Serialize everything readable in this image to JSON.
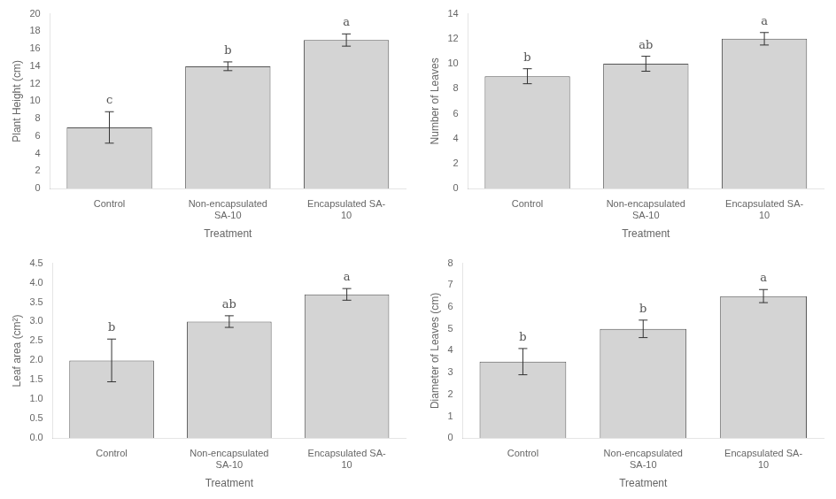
{
  "chart_data": [
    {
      "type": "bar",
      "categories": [
        "Control",
        "Non-encapsulated\nSA-10",
        "Encapsulated SA-\n10"
      ],
      "values": [
        7.0,
        14.0,
        17.0
      ],
      "errors": [
        1.8,
        0.5,
        0.7
      ],
      "annotations": [
        "c",
        "b",
        "a"
      ],
      "xlabel": "Treatment",
      "ylabel": "Plant Height (cm)",
      "ylim": [
        0,
        20
      ],
      "yticks": [
        0,
        2,
        4,
        6,
        8,
        10,
        12,
        14,
        16,
        18,
        20
      ],
      "color": "#d4d4d4",
      "grid": false
    },
    {
      "type": "bar",
      "categories": [
        "Control",
        "Non-encapsulated\nSA-10",
        "Encapsulated SA-\n10"
      ],
      "values": [
        9.0,
        10.0,
        12.0
      ],
      "errors": [
        0.6,
        0.6,
        0.5
      ],
      "annotations": [
        "b",
        "ab",
        "a"
      ],
      "xlabel": "Treatment",
      "ylabel": "Number of Leaves",
      "ylim": [
        0,
        14
      ],
      "yticks": [
        0,
        2,
        4,
        6,
        8,
        10,
        12,
        14
      ],
      "color": "#d4d4d4",
      "grid": false
    },
    {
      "type": "bar",
      "categories": [
        "Control",
        "Non-encapsulated\nSA-10",
        "Encapsulated SA-\n10"
      ],
      "values": [
        2.0,
        3.0,
        3.7
      ],
      "errors": [
        0.55,
        0.15,
        0.15
      ],
      "annotations": [
        "b",
        "ab",
        "a"
      ],
      "xlabel": "Treatment",
      "ylabel": "Leaf area (cm²)",
      "ylim": [
        0,
        4.5
      ],
      "yticks": [
        {
          "value": 0,
          "label": "0.0"
        },
        0.5,
        {
          "value": 1,
          "label": "1.0"
        },
        1.5,
        {
          "value": 2,
          "label": "2.0"
        },
        2.5,
        {
          "value": 3,
          "label": "3.0"
        },
        3.5,
        {
          "value": 4,
          "label": "4.0"
        },
        4.5
      ],
      "color": "#d4d4d4",
      "grid": false
    },
    {
      "type": "bar",
      "categories": [
        "Control",
        "Non-encapsulated\nSA-10",
        "Encapsulated SA-\n10"
      ],
      "values": [
        3.5,
        5.0,
        6.5
      ],
      "errors": [
        0.6,
        0.4,
        0.3
      ],
      "annotations": [
        "b",
        "b",
        "a"
      ],
      "xlabel": "Treatment",
      "ylabel": "Diameter of Leaves (cm)",
      "ylim": [
        0,
        8
      ],
      "yticks": [
        0,
        1,
        2,
        3,
        4,
        5,
        6,
        7,
        8
      ],
      "color": "#d4d4d4",
      "grid": false
    }
  ]
}
